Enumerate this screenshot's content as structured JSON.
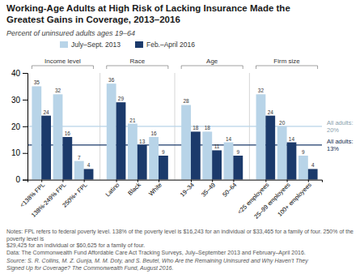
{
  "chart_data": {
    "type": "bar",
    "title": "Working-Age Adults at High Risk of Lacking Insurance Made the\nGreatest Gains in Coverage, 2013–2016",
    "subtitle": "Percent of uninsured adults ages 19–64",
    "categories": [
      "<138% FPL",
      "138%-249% FPL",
      "250%+ FPL",
      "Latino",
      "Black",
      "White",
      "19–34",
      "35–49",
      "50–64",
      "<25 employees",
      "25–99 employees",
      "100+ employees"
    ],
    "groups": [
      {
        "label": "Income level",
        "categories": [
          "<138% FPL",
          "138%-249% FPL",
          "250%+ FPL"
        ]
      },
      {
        "label": "Race",
        "categories": [
          "Latino",
          "Black",
          "White"
        ]
      },
      {
        "label": "Age",
        "categories": [
          "19–34",
          "35–49",
          "50–64"
        ]
      },
      {
        "label": "Firm size",
        "categories": [
          "<25 employees",
          "25–99 employees",
          "100+ employees"
        ]
      }
    ],
    "series": [
      {
        "name": "July–Sept. 2013",
        "color": "#b8d4e8",
        "values": [
          35,
          32,
          7,
          36,
          21,
          16,
          28,
          18,
          14,
          32,
          20,
          9
        ]
      },
      {
        "name": "Feb.–April 2016",
        "color": "#1b3a6b",
        "values": [
          24,
          16,
          4,
          29,
          13,
          9,
          18,
          11,
          9,
          24,
          14,
          4
        ]
      }
    ],
    "reference_lines": [
      {
        "value": 20,
        "label": "All adults:\n20%",
        "color": "#b8d4e8"
      },
      {
        "value": 13,
        "label": "All adults:\n13%",
        "color": "#1b3a6b"
      }
    ],
    "ylim": [
      0,
      40
    ],
    "yticks": [
      0,
      10,
      20,
      30,
      40
    ],
    "grid": false,
    "legend": "top",
    "data_labels": true,
    "notes": [
      "Notes: FPL refers to federal poverty level. 138% of the poverty level is $16,243 for an individual or $33,465 for a family of four. 250% of the poverty level is",
      "$29,425 for an individual or $60,625 for a family of four.",
      "Data: The Commonwealth Fund Affordable Care Act Tracking Surveys, July–September 2013 and February–April 2016."
    ],
    "source": "Source: S. R. Collins, M. Z. Gunja, M. M. Doty, and S. Beutel, Who Are the Remaining Uninsured and Why Haven’t They\nSigned Up for Coverage? The Commonwealth Fund, August 2016."
  }
}
